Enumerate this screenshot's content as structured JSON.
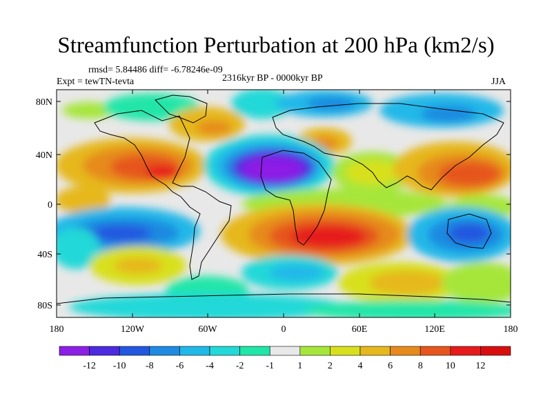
{
  "title": "Streamfunction Perturbation at 200 hPa (km2/s)",
  "stats_line": "rmsd= 5.84486 diff= -6.78246e-09",
  "left_label": "Expt = tewTN-tevta",
  "center_label": "2316kyr BP - 0000kyr BP",
  "right_label": "JJA",
  "lat_ticks": [
    "80N",
    "40N",
    "0",
    "40S",
    "80S"
  ],
  "lon_ticks": [
    "180",
    "120W",
    "60W",
    "0",
    "60E",
    "120E",
    "180"
  ],
  "colorbar": {
    "labels": [
      "-12",
      "-10",
      "-8",
      "-6",
      "-4",
      "-2",
      "-1",
      "1",
      "2",
      "4",
      "6",
      "8",
      "10",
      "12"
    ],
    "colors": [
      "#8c1fe6",
      "#4b2ae0",
      "#2457e0",
      "#1f8ae0",
      "#20b8e8",
      "#22d8d8",
      "#20e6a8",
      "#e8e8e8",
      "#a6e63a",
      "#d8e01e",
      "#e6b81e",
      "#e68a1e",
      "#e6561e",
      "#e61a1a",
      "#d80e0e"
    ]
  }
}
